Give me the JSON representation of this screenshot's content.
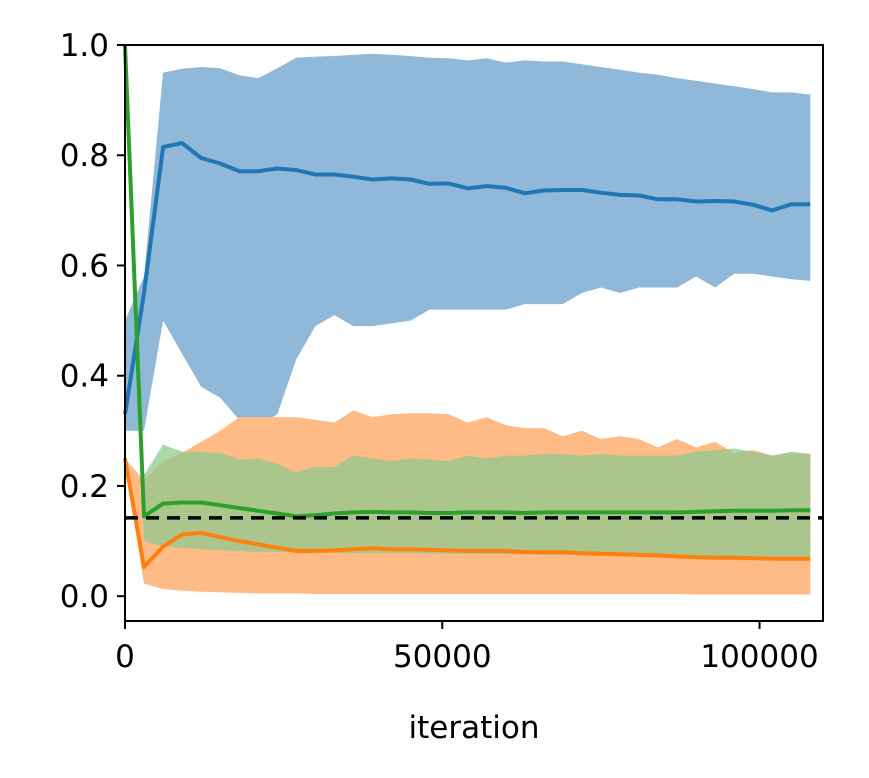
{
  "chart_data": {
    "type": "line",
    "title": "",
    "xlabel": "iteration",
    "ylabel": "",
    "xlim": [
      0,
      110000
    ],
    "ylim": [
      -0.045,
      1.0
    ],
    "x_ticks": [
      0,
      50000,
      100000
    ],
    "x_tick_labels": [
      "0",
      "50000",
      "100000"
    ],
    "y_ticks": [
      0.0,
      0.2,
      0.4,
      0.6,
      0.8,
      1.0
    ],
    "y_tick_labels": [
      "0.0",
      "0.2",
      "0.4",
      "0.6",
      "0.8",
      "1.0"
    ],
    "grid": false,
    "reference_line": {
      "y": 0.142,
      "style": "dashed",
      "color": "#000000"
    },
    "x": [
      0,
      3000,
      6000,
      9000,
      12000,
      15000,
      18000,
      21000,
      24000,
      27000,
      30000,
      33000,
      36000,
      39000,
      42000,
      45000,
      48000,
      51000,
      54000,
      57000,
      60000,
      63000,
      66000,
      69000,
      72000,
      75000,
      78000,
      81000,
      84000,
      87000,
      90000,
      93000,
      96000,
      99000,
      102000,
      105000,
      108000
    ],
    "series": [
      {
        "color": "#1f77b4",
        "band_color": "#8fb8d9",
        "values": [
          0.33,
          0.55,
          0.815,
          0.822,
          0.795,
          0.785,
          0.771,
          0.771,
          0.776,
          0.773,
          0.765,
          0.765,
          0.761,
          0.756,
          0.758,
          0.756,
          0.748,
          0.749,
          0.74,
          0.744,
          0.741,
          0.731,
          0.736,
          0.737,
          0.737,
          0.732,
          0.728,
          0.727,
          0.72,
          0.72,
          0.716,
          0.717,
          0.716,
          0.71,
          0.7,
          0.711,
          0.711
        ],
        "lower": [
          0.3,
          0.3,
          0.5,
          0.44,
          0.38,
          0.36,
          0.32,
          0.31,
          0.33,
          0.43,
          0.49,
          0.51,
          0.49,
          0.49,
          0.495,
          0.5,
          0.52,
          0.52,
          0.52,
          0.52,
          0.52,
          0.53,
          0.53,
          0.53,
          0.55,
          0.56,
          0.55,
          0.56,
          0.56,
          0.56,
          0.58,
          0.56,
          0.585,
          0.585,
          0.58,
          0.575,
          0.572
        ],
        "upper": [
          0.5,
          0.58,
          0.95,
          0.957,
          0.96,
          0.958,
          0.945,
          0.94,
          0.958,
          0.977,
          0.979,
          0.98,
          0.982,
          0.984,
          0.982,
          0.98,
          0.977,
          0.976,
          0.972,
          0.976,
          0.968,
          0.972,
          0.97,
          0.97,
          0.965,
          0.96,
          0.955,
          0.95,
          0.946,
          0.94,
          0.935,
          0.93,
          0.925,
          0.92,
          0.914,
          0.914,
          0.91
        ]
      },
      {
        "color": "#ff7f0e",
        "band_color": "#ffbb85",
        "values": [
          0.25,
          0.053,
          0.09,
          0.112,
          0.115,
          0.107,
          0.1,
          0.094,
          0.088,
          0.082,
          0.082,
          0.083,
          0.085,
          0.087,
          0.085,
          0.085,
          0.084,
          0.083,
          0.082,
          0.082,
          0.082,
          0.08,
          0.08,
          0.08,
          0.078,
          0.077,
          0.076,
          0.075,
          0.074,
          0.072,
          0.071,
          0.07,
          0.07,
          0.069,
          0.068,
          0.068,
          0.068
        ],
        "lower": [
          0.24,
          0.023,
          0.013,
          0.01,
          0.008,
          0.007,
          0.006,
          0.005,
          0.005,
          0.005,
          0.004,
          0.004,
          0.004,
          0.004,
          0.004,
          0.004,
          0.004,
          0.004,
          0.004,
          0.004,
          0.004,
          0.004,
          0.004,
          0.004,
          0.004,
          0.004,
          0.004,
          0.004,
          0.004,
          0.004,
          0.003,
          0.003,
          0.003,
          0.003,
          0.003,
          0.003,
          0.003
        ],
        "upper": [
          0.25,
          0.21,
          0.245,
          0.26,
          0.28,
          0.3,
          0.325,
          0.325,
          0.325,
          0.325,
          0.32,
          0.315,
          0.337,
          0.325,
          0.33,
          0.332,
          0.332,
          0.33,
          0.315,
          0.325,
          0.31,
          0.305,
          0.305,
          0.29,
          0.3,
          0.285,
          0.29,
          0.285,
          0.27,
          0.285,
          0.27,
          0.28,
          0.26,
          0.265,
          0.255,
          0.26,
          0.258
        ]
      },
      {
        "color": "#2ca02c",
        "band_color": "#8fc98f",
        "values": [
          1.0,
          0.145,
          0.168,
          0.17,
          0.17,
          0.165,
          0.16,
          0.155,
          0.15,
          0.145,
          0.147,
          0.15,
          0.152,
          0.153,
          0.152,
          0.152,
          0.151,
          0.151,
          0.152,
          0.152,
          0.152,
          0.151,
          0.152,
          0.152,
          0.152,
          0.152,
          0.152,
          0.152,
          0.152,
          0.152,
          0.153,
          0.154,
          0.155,
          0.155,
          0.155,
          0.156,
          0.156
        ],
        "lower": [
          1.0,
          0.1,
          0.09,
          0.088,
          0.085,
          0.083,
          0.082,
          0.08,
          0.08,
          0.08,
          0.08,
          0.079,
          0.078,
          0.078,
          0.078,
          0.078,
          0.077,
          0.077,
          0.077,
          0.076,
          0.076,
          0.076,
          0.075,
          0.075,
          0.075,
          0.074,
          0.074,
          0.074,
          0.073,
          0.073,
          0.072,
          0.072,
          0.072,
          0.071,
          0.071,
          0.071,
          0.07
        ],
        "upper": [
          1.0,
          0.22,
          0.275,
          0.262,
          0.262,
          0.26,
          0.248,
          0.25,
          0.24,
          0.225,
          0.235,
          0.235,
          0.255,
          0.25,
          0.245,
          0.25,
          0.248,
          0.245,
          0.255,
          0.25,
          0.255,
          0.255,
          0.258,
          0.258,
          0.255,
          0.258,
          0.255,
          0.255,
          0.255,
          0.255,
          0.262,
          0.265,
          0.268,
          0.262,
          0.255,
          0.262,
          0.258
        ]
      }
    ]
  }
}
